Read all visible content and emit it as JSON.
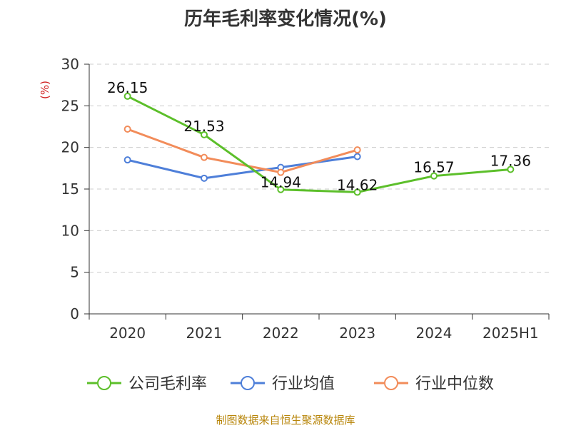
{
  "chart_data": {
    "type": "line",
    "title": "历年毛利率变化情况(%)",
    "ylabel": "(%)",
    "xlabel": "",
    "categories": [
      "2020",
      "2021",
      "2022",
      "2023",
      "2024",
      "2025H1"
    ],
    "ylim": [
      0,
      30
    ],
    "yticks": [
      0,
      5,
      10,
      15,
      20,
      25,
      30
    ],
    "grid": true,
    "legend_position": "bottom",
    "series": [
      {
        "name": "公司毛利率",
        "color": "#5cbf2a",
        "values": [
          26.15,
          21.53,
          14.94,
          14.62,
          16.57,
          17.36
        ],
        "labels": [
          "26.15",
          "21.53",
          "14.94",
          "14.62",
          "16.57",
          "17.36"
        ]
      },
      {
        "name": "行业均值",
        "color": "#4e7fd9",
        "values": [
          18.5,
          16.3,
          17.6,
          18.9,
          null,
          null
        ]
      },
      {
        "name": "行业中位数",
        "color": "#f28c5a",
        "values": [
          22.2,
          18.8,
          17.0,
          19.7,
          null,
          null
        ]
      }
    ]
  },
  "footer": {
    "source": "制图数据来自恒生聚源数据库"
  }
}
